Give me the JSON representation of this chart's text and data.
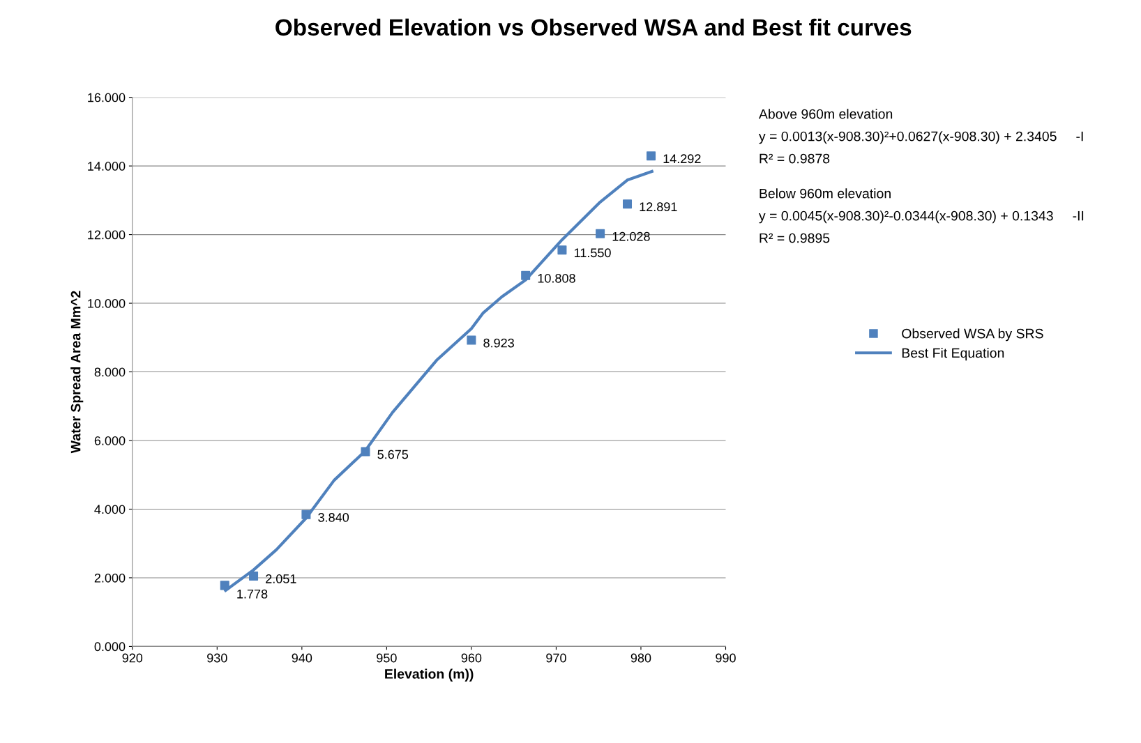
{
  "chart_data": {
    "type": "scatter",
    "title": "Observed Elevation vs Observed WSA and Best fit curves",
    "xlabel": "Elevation (m))",
    "ylabel": "Water Spread Area Mm^2",
    "xlim": [
      920,
      990
    ],
    "xticks": [
      920,
      930,
      940,
      950,
      960,
      970,
      980,
      990
    ],
    "ylim": [
      0,
      16
    ],
    "yticks": [
      {
        "value": 0,
        "label": "0.000"
      },
      {
        "value": 2,
        "label": "2.000"
      },
      {
        "value": 4,
        "label": "4.000"
      },
      {
        "value": 6,
        "label": "6.000"
      },
      {
        "value": 8,
        "label": "8.000"
      },
      {
        "value": 10,
        "label": "10.000"
      },
      {
        "value": 12,
        "label": "12.000"
      },
      {
        "value": 14,
        "label": "14.000"
      },
      {
        "value": 16,
        "label": "16.000"
      }
    ],
    "grid": "y",
    "legend": "right",
    "series": [
      {
        "name": "Observed WSA by SRS",
        "color": "#4f81bd",
        "marker": "square",
        "x": [
          930.9,
          934.3,
          940.5,
          947.5,
          960.0,
          966.4,
          970.7,
          975.2,
          978.4,
          981.2
        ],
        "values": [
          1.778,
          2.051,
          3.84,
          5.675,
          8.923,
          10.808,
          11.55,
          12.028,
          12.891,
          14.292
        ],
        "value_labels": [
          "1.778",
          "2.051",
          "3.840",
          "5.675",
          "8.923",
          "10.808",
          "11.550",
          "12.028",
          "12.891",
          "14.292"
        ]
      },
      {
        "name": "Best Fit Equation",
        "type": "line",
        "color": "#4f81bd",
        "line_style": "solid",
        "marker": "none",
        "x": [
          931.0,
          934.3,
          937.0,
          940.5,
          943.8,
          947.45,
          950.7,
          955.9,
          960.0,
          961.4,
          963.6,
          966.4,
          970.7,
          975.2,
          978.4,
          981.3
        ],
        "values": [
          1.63,
          2.23,
          2.82,
          3.74,
          4.84,
          5.69,
          6.82,
          8.34,
          9.26,
          9.72,
          10.19,
          10.68,
          11.85,
          12.95,
          13.59,
          13.84
        ]
      }
    ],
    "annotations": [
      "Above 960m elevation",
      "y = 0.0013(x-908.30)²+0.0627(x-908.30) + 2.3405     -I",
      "R² = 0.9878",
      "Below 960m elevation",
      "y = 0.0045(x-908.30)²-0.0344(x-908.30) + 0.1343     -II",
      "R² = 0.9895"
    ]
  }
}
